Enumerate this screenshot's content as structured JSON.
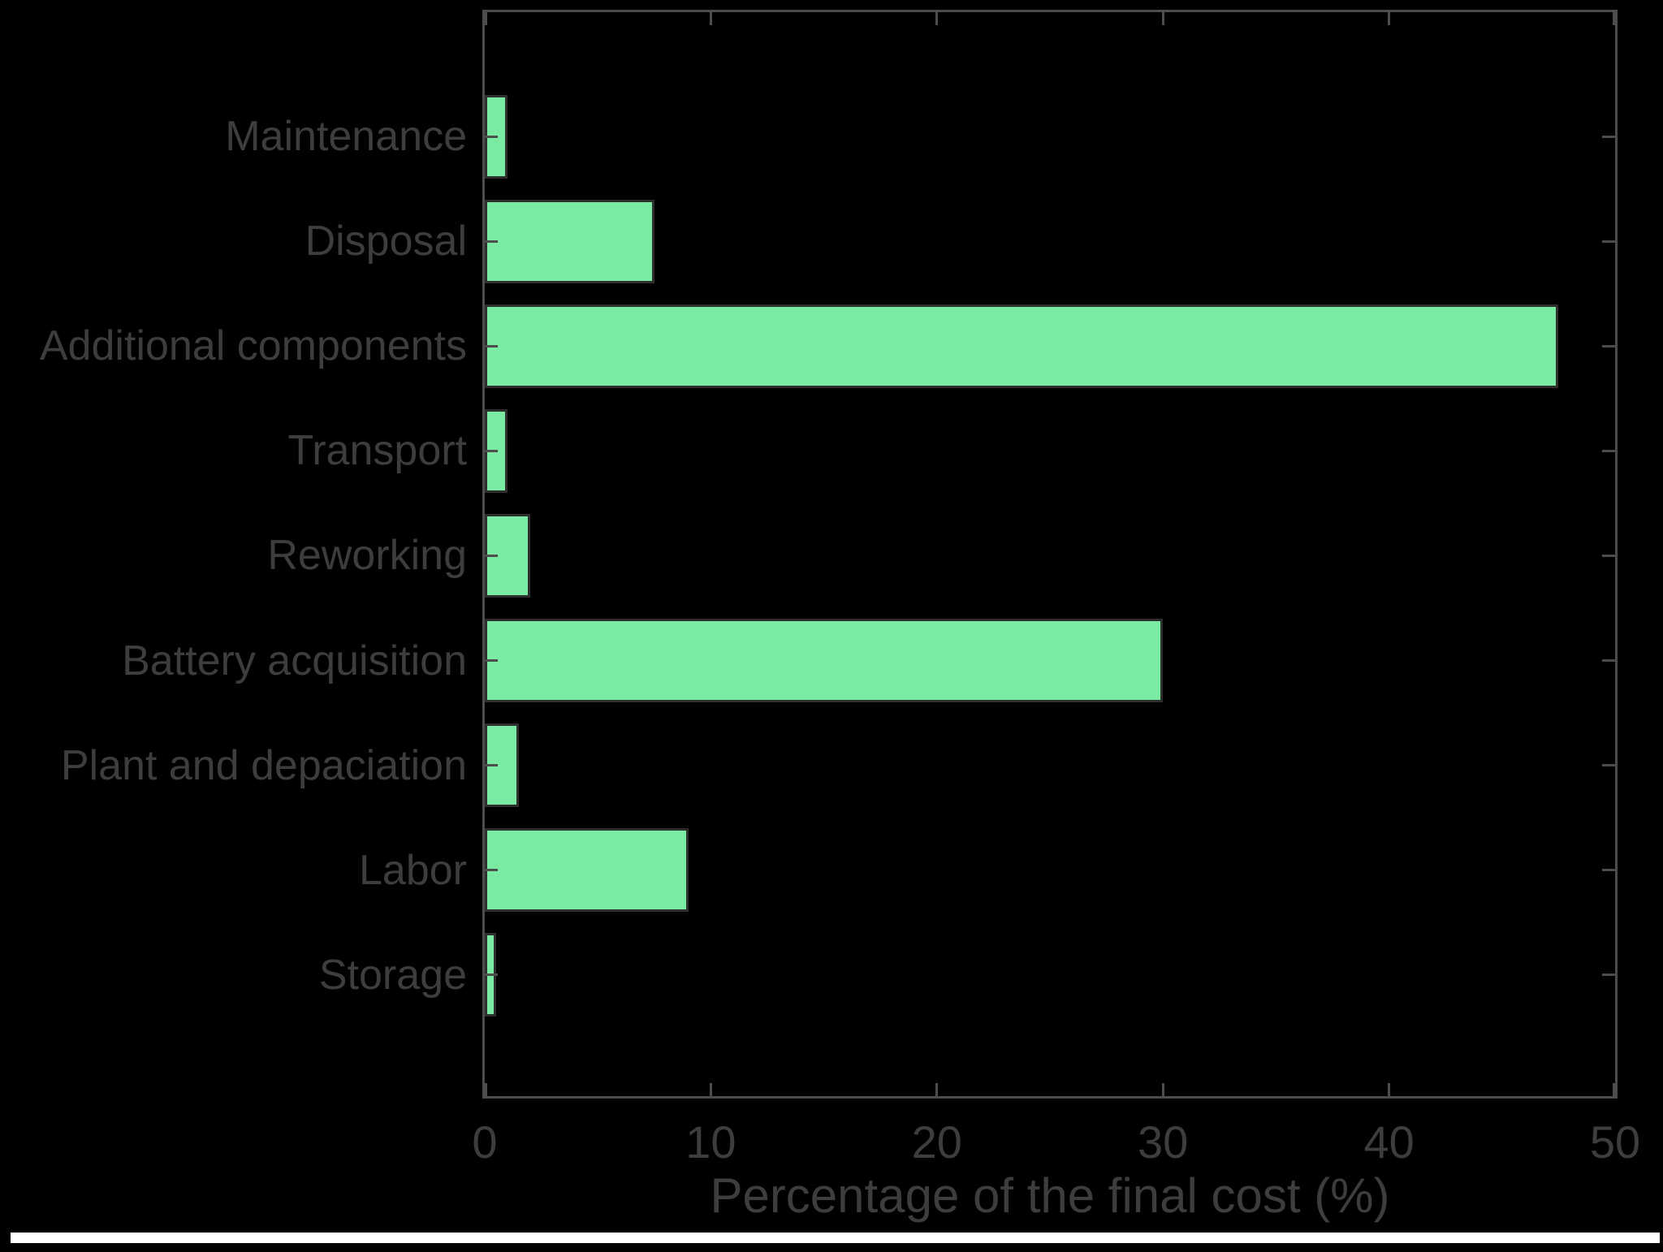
{
  "figure": {
    "background_color": "#000000",
    "bottom_strip_color": "#ffffff"
  },
  "chart_data": {
    "type": "bar",
    "orientation": "horizontal",
    "title": "",
    "xlabel": "Percentage of the final cost (%)",
    "ylabel": "",
    "categories": [
      "Maintenance",
      "Disposal",
      "Additional components",
      "Transport",
      "Reworking",
      "Battery acquisition",
      "Plant and depaciation",
      "Labor",
      "Storage"
    ],
    "values": [
      1,
      7.5,
      47.5,
      1,
      2,
      30,
      1.5,
      9,
      0.5
    ],
    "xlim": [
      0,
      50
    ],
    "xticks": [
      "0",
      "10",
      "20",
      "30",
      "40",
      "50"
    ],
    "grid": false,
    "legend": "none",
    "box": true,
    "tick_direction": "in",
    "bar_fill_color": "#7beba3",
    "bar_edge_color": "#2e2e2e",
    "axis_color": "#4d4d4d",
    "text_color": "#3d3d3d"
  }
}
